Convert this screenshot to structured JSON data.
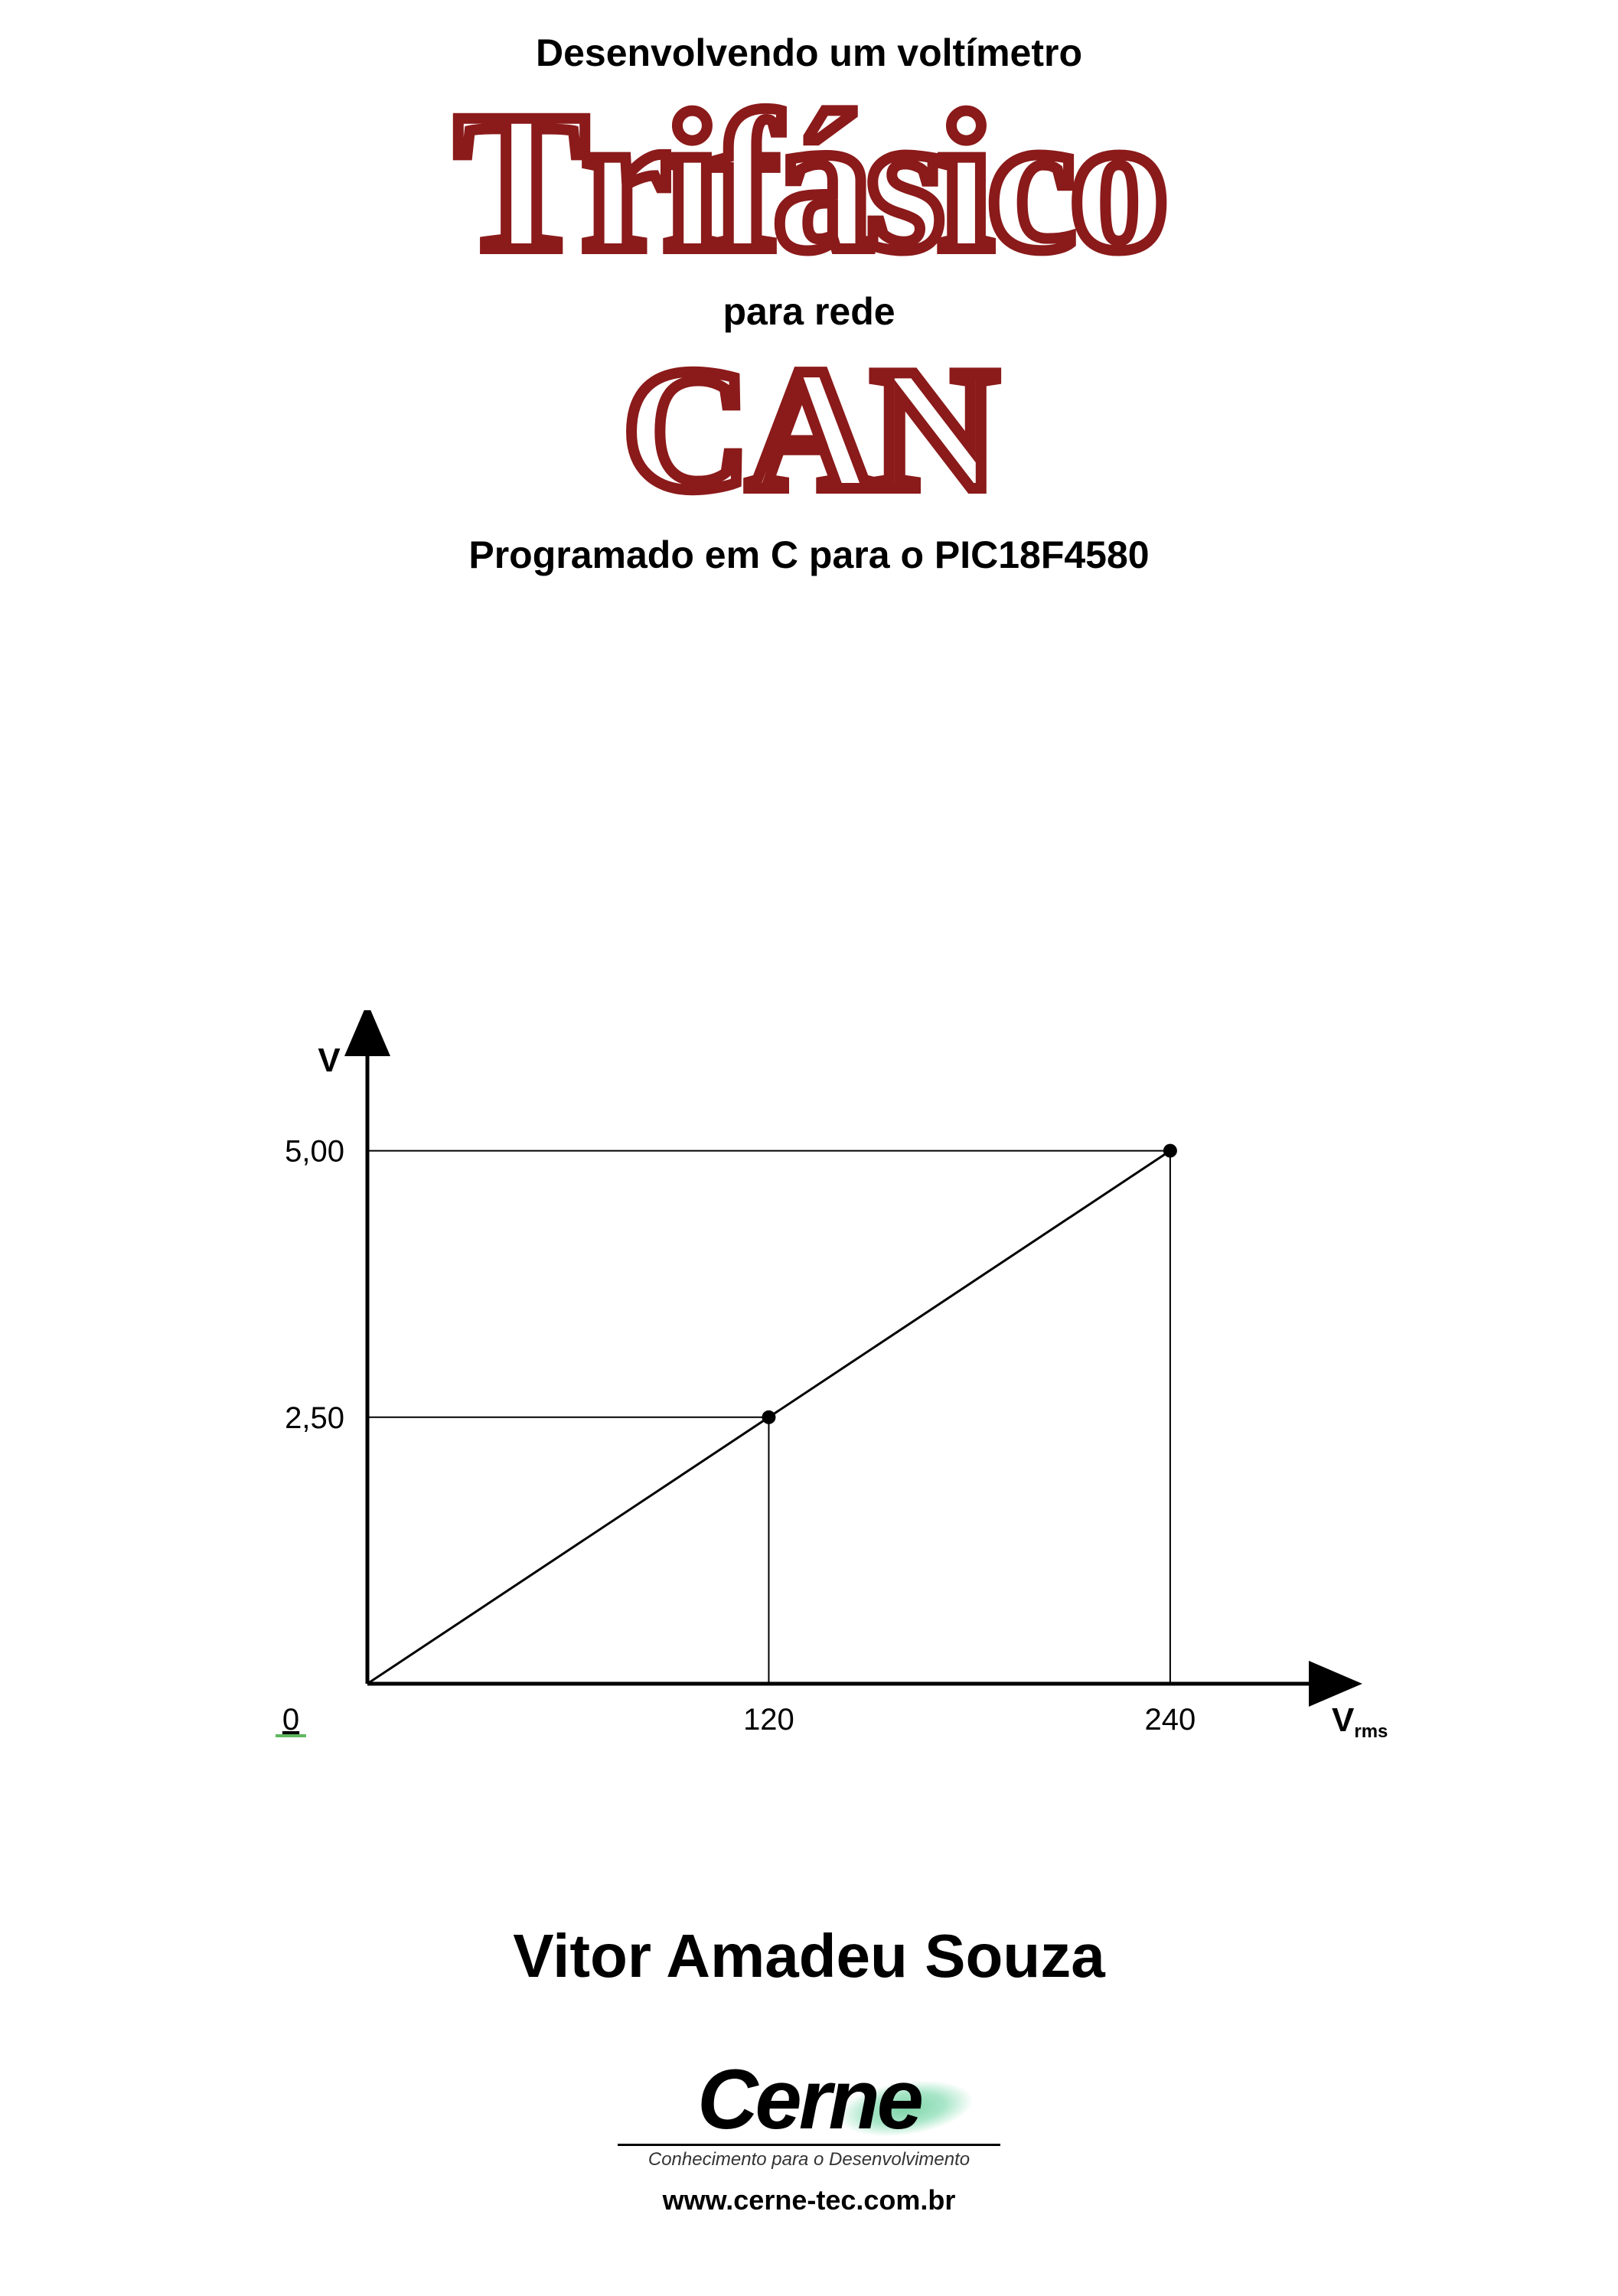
{
  "title": {
    "line1": "Desenvolvendo um voltímetro",
    "big1": "Trifásico",
    "line2": "para rede",
    "big2": "CAN",
    "line3": "Programado em C para o PIC18F4580"
  },
  "chart": {
    "type": "line",
    "y_axis_label": "V",
    "x_axis_label": "Vrms",
    "x_axis_label_sub": "rms",
    "origin_label": "0",
    "y_ticks": [
      {
        "label": "5,00",
        "value": 5.0
      },
      {
        "label": "2,50",
        "value": 2.5
      }
    ],
    "x_ticks": [
      {
        "label": "120",
        "value": 120
      },
      {
        "label": "240",
        "value": 240
      }
    ],
    "points": [
      {
        "x": 0,
        "y": 0
      },
      {
        "x": 120,
        "y": 2.5
      },
      {
        "x": 240,
        "y": 5.0
      }
    ],
    "marker_points": [
      {
        "x": 120,
        "y": 2.5
      },
      {
        "x": 240,
        "y": 5.0
      }
    ],
    "xlim": [
      0,
      270
    ],
    "ylim": [
      0,
      5.6
    ],
    "axis_color": "#000000",
    "line_color": "#000000",
    "guide_color": "#000000",
    "marker_color": "#000000",
    "marker_radius": 9,
    "axis_width": 5,
    "line_width": 3,
    "guide_width": 2,
    "background_color": "#ffffff",
    "label_fontsize": 40,
    "axis_label_fontsize": 44,
    "origin_underline_color": "#5fb85f"
  },
  "author": "Vitor Amadeu Souza",
  "logo": {
    "name": "Cerne",
    "tagline": "Conhecimento para o Desenvolvimento",
    "url": "www.cerne-tec.com.br",
    "swoosh_color": "#7fd4a8"
  },
  "colors": {
    "outline_red": "#8b1a1a",
    "fill_white": "#ffffff",
    "text_black": "#000000"
  }
}
